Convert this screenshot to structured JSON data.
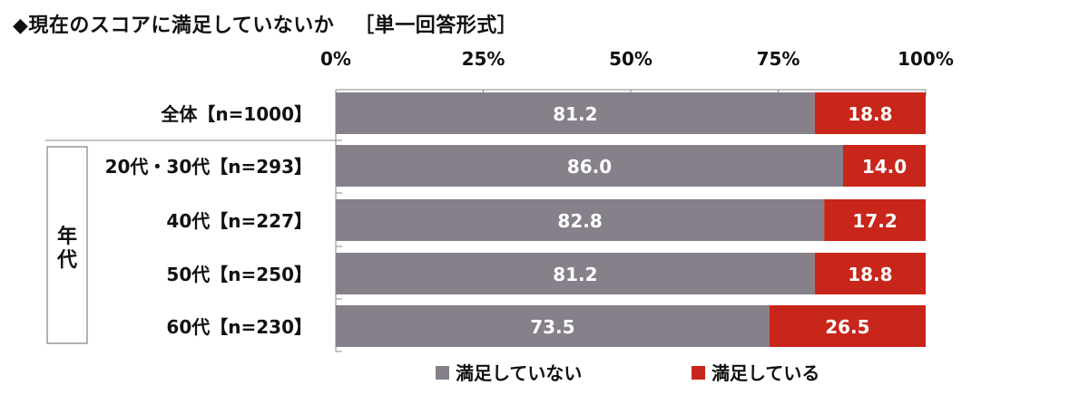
{
  "title": {
    "main": "◆現在のスコアに満足していないか",
    "qualifier": "［単一回答形式］"
  },
  "chart_data": {
    "type": "bar",
    "orientation": "horizontal",
    "stacked": true,
    "x_tick_labels": [
      "0%",
      "25%",
      "50%",
      "75%",
      "100%"
    ],
    "xlim": [
      0,
      100
    ],
    "group_label": "年代",
    "categories": [
      "全体【n=1000】",
      "20代・30代【n=293】",
      "40代【n=227】",
      "50代【n=250】",
      "60代【n=230】"
    ],
    "series": [
      {
        "name": "満足していない",
        "color": "#858089",
        "values": [
          81.2,
          86.0,
          82.8,
          81.2,
          73.5
        ],
        "labels": [
          "81.2",
          "86.0",
          "82.8",
          "81.2",
          "73.5"
        ]
      },
      {
        "name": "満足している",
        "color": "#c8251b",
        "values": [
          18.8,
          14.0,
          17.2,
          18.8,
          26.5
        ],
        "labels": [
          "18.8",
          "14.0",
          "17.2",
          "18.8",
          "26.5"
        ]
      }
    ],
    "legend_position": "bottom"
  }
}
